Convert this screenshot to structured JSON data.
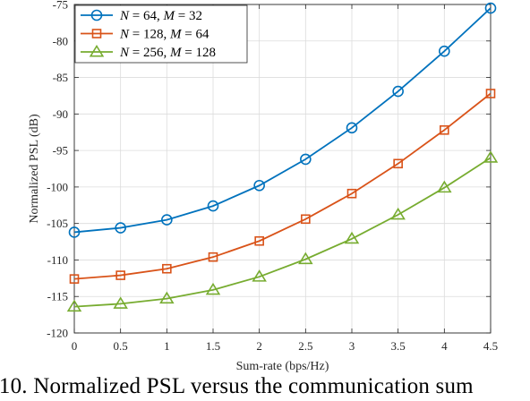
{
  "caption": ". 10. Normalized PSL versus the communication sum",
  "chart_data": {
    "type": "line",
    "xlabel": "Sum-rate (bps/Hz)",
    "ylabel": "Normalized PSL (dB)",
    "xlim": [
      0,
      4.5
    ],
    "ylim": [
      -120,
      -75
    ],
    "xticks": [
      0,
      0.5,
      1,
      1.5,
      2,
      2.5,
      3,
      3.5,
      4,
      4.5
    ],
    "xtick_labels": [
      "0",
      "0.5",
      "1",
      "1.5",
      "2",
      "2.5",
      "3",
      "3.5",
      "4",
      "4.5"
    ],
    "yticks": [
      -120,
      -115,
      -110,
      -105,
      -100,
      -95,
      -90,
      -85,
      -80,
      -75
    ],
    "ytick_labels": [
      "-120",
      "-115",
      "-110",
      "-105",
      "-100",
      "-95",
      "-90",
      "-85",
      "-80",
      "-75"
    ],
    "grid": true,
    "legend_position": "top-left",
    "x": [
      0,
      0.5,
      1,
      1.5,
      2,
      2.5,
      3,
      3.5,
      4,
      4.5
    ],
    "series": [
      {
        "name": "N = 64, M = 32",
        "N": "64",
        "M": "32",
        "color": "#0072BD",
        "marker": "circle",
        "values": [
          -106.2,
          -105.6,
          -104.5,
          -102.6,
          -99.8,
          -96.2,
          -91.9,
          -86.9,
          -81.4,
          -75.5
        ]
      },
      {
        "name": "N = 128, M = 64",
        "N": "128",
        "M": "64",
        "color": "#D95319",
        "marker": "square",
        "values": [
          -112.6,
          -112.1,
          -111.2,
          -109.6,
          -107.4,
          -104.4,
          -100.9,
          -96.8,
          -92.2,
          -87.2
        ]
      },
      {
        "name": "N = 256, M = 128",
        "N": "256",
        "M": "128",
        "color": "#77AC30",
        "marker": "triangle",
        "values": [
          -116.4,
          -116.0,
          -115.3,
          -114.1,
          -112.3,
          -109.9,
          -107.1,
          -103.8,
          -100.1,
          -96.0
        ]
      }
    ]
  }
}
